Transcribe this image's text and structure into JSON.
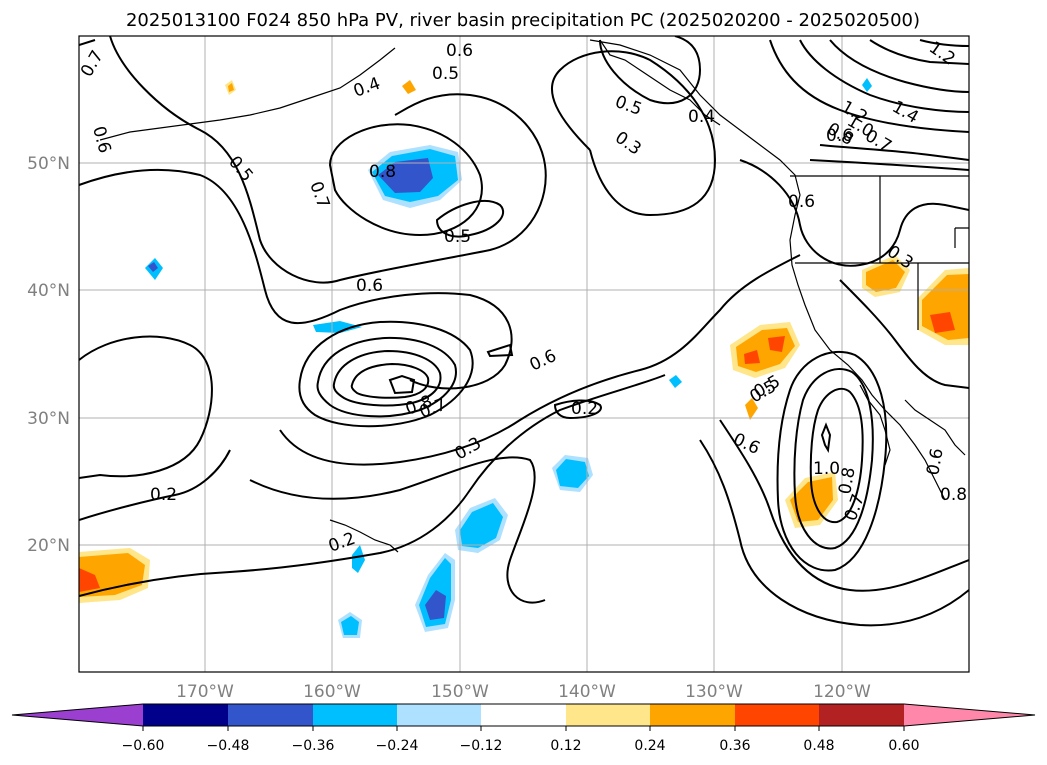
{
  "title": "2025013100 F024 850 hPa PV, river basin precipitation PC (2025020200 - 2025020500)",
  "axes": {
    "x_ticks": [
      "170°W",
      "160°W",
      "150°W",
      "140°W",
      "130°W",
      "120°W"
    ],
    "y_ticks": [
      "50°N",
      "40°N",
      "30°N",
      "20°N"
    ]
  },
  "colorbar": {
    "ticks": [
      "−0.60",
      "−0.48",
      "−0.36",
      "−0.24",
      "−0.12",
      "0.12",
      "0.24",
      "0.36",
      "0.48",
      "0.60"
    ],
    "colors": {
      "under": "#9a3fd0",
      "bins": [
        "#00008b",
        "#3355cc",
        "#00bfff",
        "#aee0ff",
        "#ffffff",
        "#ffe68a",
        "#ffa500",
        "#ff4500",
        "#b22222"
      ],
      "over": "#ff88aa"
    }
  },
  "contour_labels": [
    "0.7",
    "0.6",
    "0.5",
    "0.6",
    "0.4",
    "0.5",
    "0.5",
    "0.8",
    "0.7",
    "0.5",
    "0.6",
    "0.6",
    "0.8",
    "0.7",
    "0.3",
    "0.2",
    "0.2",
    "0.2",
    "0.5",
    "0.3",
    "0.4",
    "1.2",
    "1.4",
    "1.2",
    "1.0",
    "0.8",
    "0.6",
    "0.7",
    "0.6",
    "0.3",
    "0.5",
    "0.6",
    "1.0",
    "0.8",
    "0.7",
    "0.6",
    "0.8"
  ],
  "chart_data": {
    "type": "map",
    "title": "2025013100 F024 850 hPa PV, river basin precipitation PC (2025020200 - 2025020500)",
    "lon_range": [
      -180,
      -110
    ],
    "lat_range": [
      10,
      60
    ],
    "grid": true,
    "colorbar_levels": [
      -0.6,
      -0.48,
      -0.36,
      -0.24,
      -0.12,
      0.12,
      0.24,
      0.36,
      0.48,
      0.6
    ],
    "colorbar_extend": "both"
  }
}
